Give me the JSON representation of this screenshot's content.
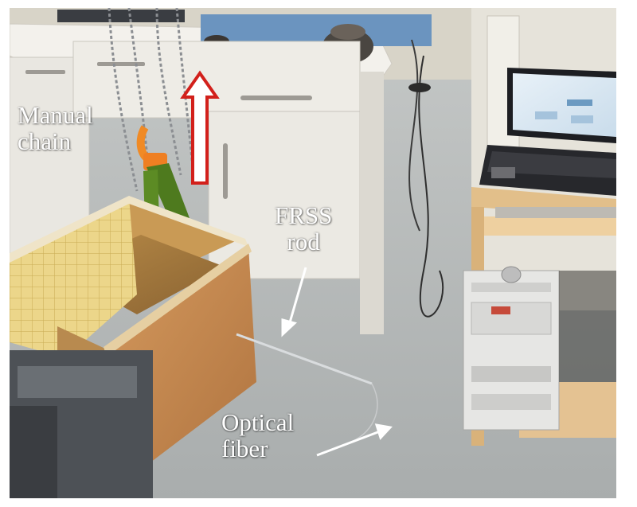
{
  "annotations": {
    "manual_chain": "Manual\nchain",
    "frss_rod": "FRSS\nrod",
    "optical_fiber": "Optical\nfiber"
  },
  "colors": {
    "floor": "#b9bdbd",
    "cabinet": "#eceae4",
    "wood": "#c88a4e",
    "lift_arrow": "#d2201b",
    "annotation_text": "#ffffff"
  }
}
